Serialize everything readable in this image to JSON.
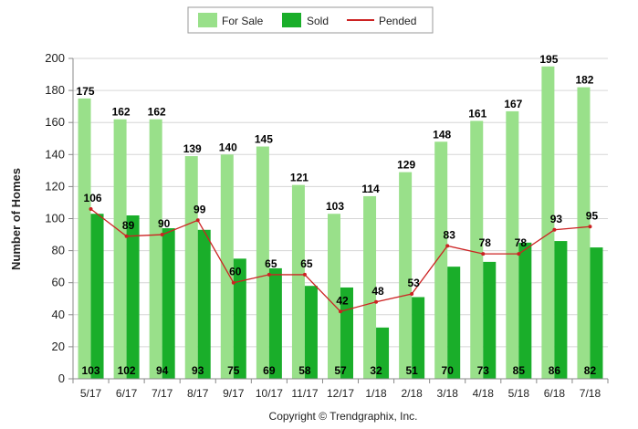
{
  "chart_data": {
    "type": "bar",
    "ylabel": "Number of Homes",
    "ylim": [
      0,
      200
    ],
    "yticks": [
      "0",
      "20",
      "40",
      "60",
      "80",
      "100",
      "120",
      "140",
      "160",
      "180",
      "200"
    ],
    "grid": true,
    "legend_position": "top-center",
    "categories": [
      "5/17",
      "6/17",
      "7/17",
      "8/17",
      "9/17",
      "10/17",
      "11/17",
      "12/17",
      "1/18",
      "2/18",
      "3/18",
      "4/18",
      "5/18",
      "6/18",
      "7/18"
    ],
    "series": [
      {
        "name": "For Sale",
        "type": "bar",
        "color": "#99e08a",
        "values": [
          175,
          162,
          162,
          139,
          140,
          145,
          121,
          103,
          114,
          129,
          148,
          161,
          167,
          195,
          182
        ]
      },
      {
        "name": "Sold",
        "type": "bar",
        "color": "#1aae2a",
        "values": [
          103,
          102,
          94,
          93,
          75,
          69,
          58,
          57,
          32,
          51,
          70,
          73,
          85,
          86,
          82
        ]
      },
      {
        "name": "Pended",
        "type": "line",
        "color": "#cc2222",
        "values": [
          106,
          89,
          90,
          99,
          60,
          65,
          65,
          42,
          48,
          53,
          83,
          78,
          78,
          93,
          95
        ]
      }
    ]
  },
  "copyright": "Copyright © Trendgraphix, Inc."
}
